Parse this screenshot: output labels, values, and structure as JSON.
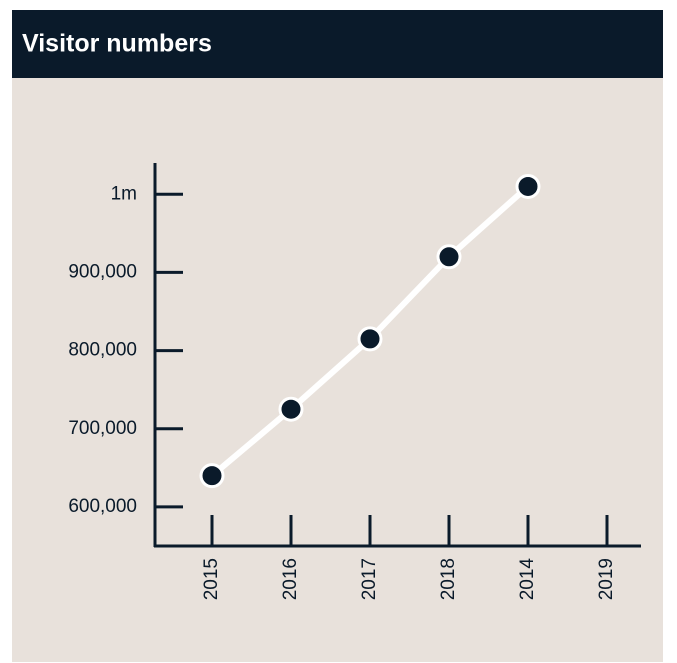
{
  "chart_data": {
    "type": "line",
    "title": "Visitor numbers",
    "categories": [
      "2015",
      "2016",
      "2017",
      "2018",
      "2014",
      "2019"
    ],
    "values": [
      640000,
      725000,
      815000,
      920000,
      1010000,
      null
    ],
    "color": "#ffffff",
    "marker_color": "#0a1a2a",
    "ylim": [
      550000,
      1040000
    ],
    "yticks": [
      {
        "value": 600000,
        "label": "600,000"
      },
      {
        "value": 700000,
        "label": "700,000"
      },
      {
        "value": 800000,
        "label": "800,000"
      },
      {
        "value": 900000,
        "label": "900,000"
      },
      {
        "value": 1000000,
        "label": "1m"
      }
    ]
  }
}
